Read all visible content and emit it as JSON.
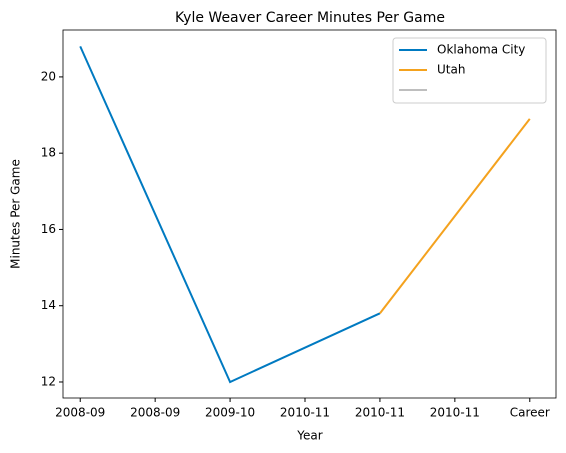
{
  "chart_data": {
    "type": "line",
    "title": "Kyle Weaver Career Minutes Per Game",
    "xlabel": "Year",
    "ylabel": "Minutes Per Game",
    "xlim": [
      -0.23,
      6.35
    ],
    "xticks": [
      {
        "value": 0,
        "label": "2008-09"
      },
      {
        "value": 1,
        "label": "2008-09"
      },
      {
        "value": 2,
        "label": "2009-10"
      },
      {
        "value": 3,
        "label": "2010-11"
      },
      {
        "value": 4,
        "label": "2010-11"
      },
      {
        "value": 5,
        "label": "2010-11"
      },
      {
        "value": 6,
        "label": "Career"
      }
    ],
    "ylim": [
      11.58,
      21.23
    ],
    "yticks": [
      12,
      14,
      16,
      18,
      20
    ],
    "legend": "upper right",
    "series": [
      {
        "name": "Oklahoma City",
        "color": "#007ac1",
        "x": [
          0,
          2,
          4
        ],
        "values": [
          20.8,
          12.0,
          13.8
        ]
      },
      {
        "name": "Utah",
        "color": "#f4a21e",
        "x": [
          4,
          6
        ],
        "values": [
          13.8,
          18.9
        ]
      },
      {
        "color": "#bebebe",
        "x": [],
        "values": []
      }
    ]
  }
}
